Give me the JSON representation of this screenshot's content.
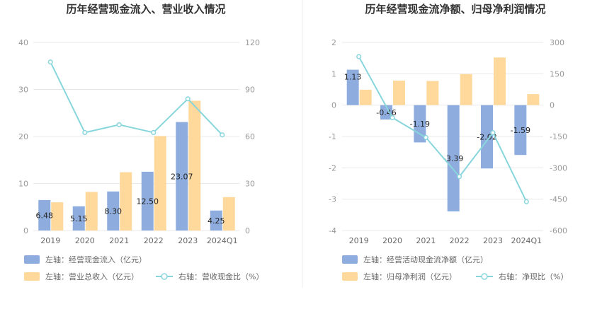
{
  "colors": {
    "bar1": "#8eadde",
    "bar2": "#ffd89c",
    "line": "#88d6dc",
    "grid": "#e8e8e8",
    "divider": "#eeeeee"
  },
  "chart_data": [
    {
      "type": "bar",
      "title": "历年经营现金流入、营业收入情况",
      "categories": [
        "2019",
        "2020",
        "2021",
        "2022",
        "2023",
        "2024Q1"
      ],
      "y_left": {
        "ticks": [
          0,
          10,
          20,
          30,
          40
        ],
        "ylim": [
          0,
          40
        ]
      },
      "y_right": {
        "ticks": [
          0,
          30,
          60,
          90,
          120
        ],
        "ylim": [
          0,
          120
        ]
      },
      "grid": true,
      "legend_placement": "bottom-left",
      "series": [
        {
          "name": "左轴：经营现金流入（亿元）",
          "axis": "left",
          "kind": "bar",
          "values": [
            6.48,
            5.15,
            8.3,
            12.5,
            23.07,
            4.25
          ],
          "labels": [
            "6.48",
            "5.15",
            "8.30",
            "12.50",
            "23.07",
            "4.25"
          ]
        },
        {
          "name": "左轴：营业总收入（亿元）",
          "axis": "left",
          "kind": "bar",
          "values": [
            6.0,
            8.2,
            12.4,
            20.1,
            27.6,
            7.1
          ]
        },
        {
          "name": "右轴：营收现金比（%）",
          "axis": "right",
          "kind": "line",
          "values": [
            107.5,
            62.5,
            67.5,
            62.5,
            84.0,
            61.0
          ]
        }
      ]
    },
    {
      "type": "bar",
      "title": "历年经营现金流净额、归母净利润情况",
      "categories": [
        "2019",
        "2020",
        "2021",
        "2022",
        "2023",
        "2024Q1"
      ],
      "y_left": {
        "ticks": [
          -4,
          -3,
          -2,
          -1,
          0,
          1,
          2
        ],
        "ylim": [
          -4,
          2
        ]
      },
      "y_right": {
        "ticks": [
          -600,
          -450,
          -300,
          -150,
          0,
          150,
          300
        ],
        "ylim": [
          -600,
          300
        ]
      },
      "grid": true,
      "legend_placement": "bottom-left",
      "series": [
        {
          "name": "左轴：经营活动现金流净额（亿元）",
          "axis": "left",
          "kind": "bar",
          "values": [
            1.13,
            -0.46,
            -1.19,
            -3.39,
            -2.02,
            -1.59
          ],
          "labels": [
            "1.13",
            "-0.46",
            "-1.19",
            "-3.39",
            "-2.02",
            "-1.59"
          ]
        },
        {
          "name": "左轴：归母净利润（亿元）",
          "axis": "left",
          "kind": "bar",
          "values": [
            0.49,
            0.78,
            0.77,
            0.99,
            1.52,
            0.35
          ]
        },
        {
          "name": "右轴：净现比（%）",
          "axis": "right",
          "kind": "line",
          "values": [
            232,
            -60,
            -155,
            -342,
            -132,
            -462
          ]
        }
      ]
    }
  ]
}
